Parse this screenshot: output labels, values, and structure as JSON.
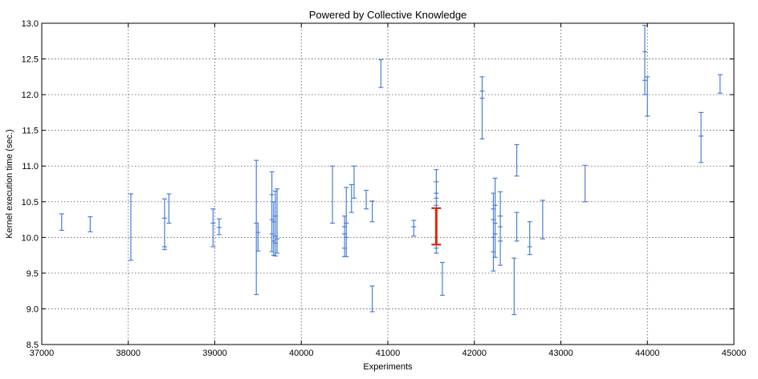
{
  "chart_data": {
    "type": "scatter",
    "title": "Powered by Collective Knowledge",
    "xlabel": "Experiments",
    "ylabel": "Kernel execution time (sec.)",
    "xlim": [
      37000,
      45000
    ],
    "ylim": [
      8.5,
      13.0
    ],
    "xticks": [
      "37000",
      "38000",
      "39000",
      "40000",
      "41000",
      "42000",
      "43000",
      "44000",
      "45000"
    ],
    "yticks": [
      "8.5",
      "9.0",
      "9.5",
      "10.0",
      "10.5",
      "11.0",
      "11.5",
      "12.0",
      "12.5",
      "13.0"
    ],
    "grid": true,
    "colors": {
      "default": "#4a7fd6",
      "highlight": "#d62a12"
    },
    "series": [
      {
        "error_bars": [
          {
            "x": 37230,
            "low": 10.1,
            "high": 10.33,
            "ticks": [
              10.1,
              10.33
            ]
          },
          {
            "x": 37560,
            "low": 10.08,
            "high": 10.29,
            "ticks": [
              10.08,
              10.29
            ]
          },
          {
            "x": 38030,
            "low": 9.68,
            "high": 10.61,
            "ticks": [
              9.68,
              10.61
            ]
          },
          {
            "x": 38420,
            "low": 9.83,
            "high": 10.54,
            "ticks": [
              9.83,
              9.87,
              10.27,
              10.54
            ]
          },
          {
            "x": 38470,
            "low": 10.2,
            "high": 10.61,
            "ticks": [
              10.2,
              10.61
            ]
          },
          {
            "x": 38980,
            "low": 9.87,
            "high": 10.4,
            "ticks": [
              9.87,
              10.2,
              10.4
            ]
          },
          {
            "x": 39050,
            "low": 10.04,
            "high": 10.26,
            "ticks": [
              10.04,
              10.14,
              10.26
            ]
          },
          {
            "x": 39480,
            "low": 9.2,
            "high": 11.08,
            "ticks": [
              9.2,
              10.2,
              11.08
            ]
          },
          {
            "x": 39500,
            "low": 9.81,
            "high": 10.2,
            "ticks": [
              9.81,
              10.07
            ]
          },
          {
            "x": 39660,
            "low": 9.8,
            "high": 10.92,
            "ticks": [
              9.8,
              10.05,
              10.25,
              10.6,
              10.92
            ]
          },
          {
            "x": 39680,
            "low": 9.75,
            "high": 10.5,
            "ticks": [
              9.75,
              9.95,
              10.22,
              10.5
            ]
          },
          {
            "x": 39700,
            "low": 9.74,
            "high": 10.65,
            "ticks": [
              9.74,
              9.92,
              10.02,
              10.3,
              10.65
            ]
          },
          {
            "x": 39720,
            "low": 9.78,
            "high": 10.68,
            "ticks": [
              9.78,
              9.98,
              10.68
            ]
          },
          {
            "x": 40360,
            "low": 10.2,
            "high": 11.0,
            "ticks": [
              10.2,
              11.0
            ]
          },
          {
            "x": 40500,
            "low": 9.73,
            "high": 10.3,
            "ticks": [
              9.73,
              9.85,
              10.05,
              10.15,
              10.3
            ]
          },
          {
            "x": 40520,
            "low": 9.73,
            "high": 10.7,
            "ticks": [
              9.73,
              10.0,
              10.2,
              10.7
            ]
          },
          {
            "x": 40580,
            "low": 10.35,
            "high": 10.74,
            "ticks": [
              10.35,
              10.74
            ]
          },
          {
            "x": 40610,
            "low": 10.55,
            "high": 11.0,
            "ticks": [
              10.55,
              11.0
            ]
          },
          {
            "x": 40750,
            "low": 10.4,
            "high": 10.66,
            "ticks": [
              10.4,
              10.66
            ]
          },
          {
            "x": 40820,
            "low": 10.22,
            "high": 10.51,
            "ticks": [
              10.22,
              10.51
            ]
          },
          {
            "x": 40820,
            "low": 8.96,
            "high": 9.32,
            "ticks": [
              8.96,
              9.32
            ]
          },
          {
            "x": 40920,
            "low": 12.1,
            "high": 12.49,
            "ticks": [
              12.1,
              12.49
            ]
          },
          {
            "x": 41300,
            "low": 10.02,
            "high": 10.24,
            "ticks": [
              10.02,
              10.15,
              10.24
            ]
          },
          {
            "x": 41560,
            "low": 9.78,
            "high": 10.95,
            "ticks": [
              9.78,
              9.85,
              10.45,
              10.55,
              10.62,
              10.78,
              10.95
            ]
          },
          {
            "x": 41630,
            "low": 9.19,
            "high": 9.65,
            "ticks": [
              9.19,
              9.65
            ]
          },
          {
            "x": 42090,
            "low": 11.38,
            "high": 12.25,
            "ticks": [
              11.38,
              11.95,
              12.05,
              12.25
            ]
          },
          {
            "x": 42220,
            "low": 9.53,
            "high": 10.62,
            "ticks": [
              9.53,
              9.8,
              10.0,
              10.25,
              10.4,
              10.62
            ]
          },
          {
            "x": 42240,
            "low": 9.72,
            "high": 10.83,
            "ticks": [
              9.72,
              10.05,
              10.2,
              10.45,
              10.83
            ]
          },
          {
            "x": 42300,
            "low": 9.61,
            "high": 10.64,
            "ticks": [
              9.61,
              9.95,
              10.15,
              10.3,
              10.64
            ]
          },
          {
            "x": 42460,
            "low": 8.92,
            "high": 9.71,
            "ticks": [
              8.92,
              9.71
            ]
          },
          {
            "x": 42490,
            "low": 9.95,
            "high": 10.35,
            "ticks": [
              9.95,
              10.35
            ]
          },
          {
            "x": 42490,
            "low": 10.86,
            "high": 11.3,
            "ticks": [
              10.86,
              11.3
            ]
          },
          {
            "x": 42640,
            "low": 9.76,
            "high": 10.22,
            "ticks": [
              9.76,
              9.87,
              10.22
            ]
          },
          {
            "x": 42790,
            "low": 9.98,
            "high": 10.52,
            "ticks": [
              9.98,
              10.52
            ]
          },
          {
            "x": 43280,
            "low": 10.5,
            "high": 11.01,
            "ticks": [
              10.5,
              11.01
            ]
          },
          {
            "x": 43970,
            "low": 12.0,
            "high": 12.97,
            "ticks": [
              12.0,
              12.2,
              12.6,
              12.97
            ]
          },
          {
            "x": 44000,
            "low": 11.7,
            "high": 12.25,
            "ticks": [
              11.7,
              12.25
            ]
          },
          {
            "x": 44620,
            "low": 11.05,
            "high": 11.75,
            "ticks": [
              11.05,
              11.42,
              11.75
            ]
          },
          {
            "x": 44840,
            "low": 12.02,
            "high": 12.28,
            "ticks": [
              12.02,
              12.28
            ]
          }
        ]
      },
      {
        "color_key": "highlight",
        "error_bars": [
          {
            "x": 41560,
            "low": 9.9,
            "high": 10.41,
            "ticks": [
              9.9,
              10.41
            ]
          }
        ]
      }
    ]
  }
}
